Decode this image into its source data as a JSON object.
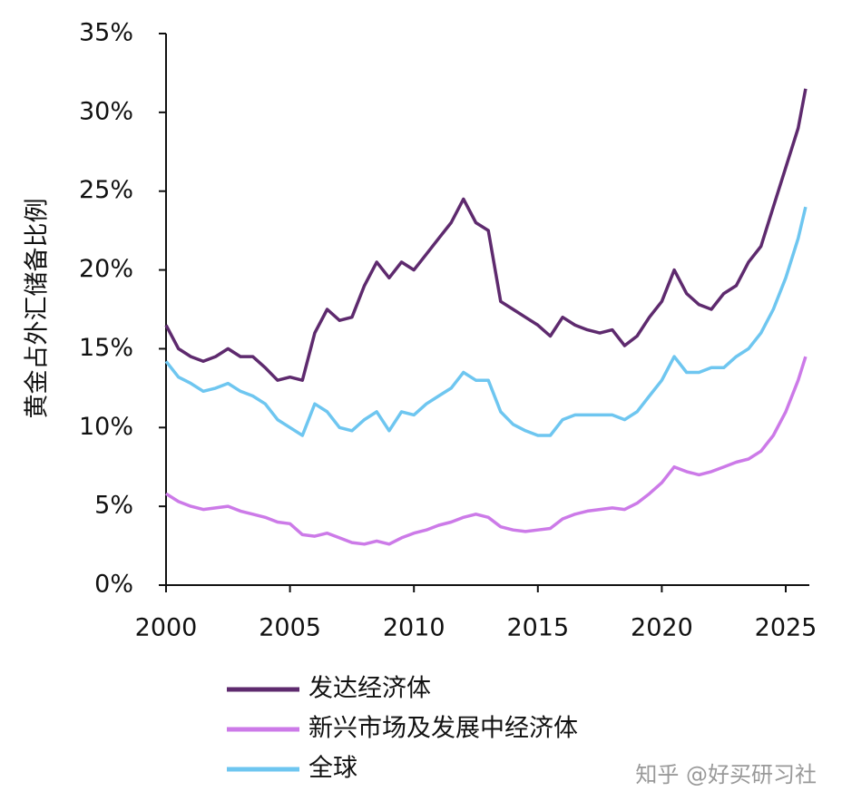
{
  "chart_data": {
    "type": "line",
    "ylabel": "黄金占外汇储备比例",
    "x": [
      2000,
      2000.5,
      2001,
      2001.5,
      2002,
      2002.5,
      2003,
      2003.5,
      2004,
      2004.5,
      2005,
      2005.5,
      2006,
      2006.5,
      2007,
      2007.5,
      2008,
      2008.5,
      2009,
      2009.5,
      2010,
      2010.5,
      2011,
      2011.5,
      2012,
      2012.5,
      2013,
      2013.5,
      2014,
      2014.5,
      2015,
      2015.5,
      2016,
      2016.5,
      2017,
      2017.5,
      2018,
      2018.5,
      2019,
      2019.5,
      2020,
      2020.5,
      2021,
      2021.5,
      2022,
      2022.5,
      2023,
      2023.5,
      2024,
      2024.5,
      2025,
      2025.5,
      2025.8
    ],
    "series": [
      {
        "name": "发达经济体",
        "color": "#5e2a6e",
        "values": [
          16.5,
          15.0,
          14.5,
          14.2,
          14.5,
          15.0,
          14.5,
          14.5,
          13.8,
          13.0,
          13.2,
          13.0,
          16.0,
          17.5,
          16.8,
          17.0,
          19.0,
          20.5,
          19.5,
          20.5,
          20.0,
          21.0,
          22.0,
          23.0,
          24.5,
          23.0,
          22.5,
          18.0,
          17.5,
          17.0,
          16.5,
          15.8,
          17.0,
          16.5,
          16.2,
          16.0,
          16.2,
          15.2,
          15.8,
          17.0,
          18.0,
          20.0,
          18.5,
          17.8,
          17.5,
          18.5,
          19.0,
          20.5,
          21.5,
          24.0,
          26.5,
          29.0,
          31.5
        ]
      },
      {
        "name": "新兴市场及发展中经济体",
        "color": "#cc7ae8",
        "values": [
          5.8,
          5.3,
          5.0,
          4.8,
          4.9,
          5.0,
          4.7,
          4.5,
          4.3,
          4.0,
          3.9,
          3.2,
          3.1,
          3.3,
          3.0,
          2.7,
          2.6,
          2.8,
          2.6,
          3.0,
          3.3,
          3.5,
          3.8,
          4.0,
          4.3,
          4.5,
          4.3,
          3.7,
          3.5,
          3.4,
          3.5,
          3.6,
          4.2,
          4.5,
          4.7,
          4.8,
          4.9,
          4.8,
          5.2,
          5.8,
          6.5,
          7.5,
          7.2,
          7.0,
          7.2,
          7.5,
          7.8,
          8.0,
          8.5,
          9.5,
          11.0,
          13.0,
          14.5
        ]
      },
      {
        "name": "全球",
        "color": "#6ec6f0",
        "values": [
          14.2,
          13.2,
          12.8,
          12.3,
          12.5,
          12.8,
          12.3,
          12.0,
          11.5,
          10.5,
          10.0,
          9.5,
          11.5,
          11.0,
          10.0,
          9.8,
          10.5,
          11.0,
          9.8,
          11.0,
          10.8,
          11.5,
          12.0,
          12.5,
          13.5,
          13.0,
          13.0,
          11.0,
          10.2,
          9.8,
          9.5,
          9.5,
          10.5,
          10.8,
          10.8,
          10.8,
          10.8,
          10.5,
          11.0,
          12.0,
          13.0,
          14.5,
          13.5,
          13.5,
          13.8,
          13.8,
          14.5,
          15.0,
          16.0,
          17.5,
          19.5,
          22.0,
          24.0
        ]
      }
    ],
    "xlim": [
      2000,
      2025
    ],
    "xticks": [
      2000,
      2005,
      2010,
      2015,
      2020,
      2025
    ],
    "ylim": [
      0,
      35
    ],
    "yticks": [
      {
        "value": 0,
        "label": "0%"
      },
      {
        "value": 5,
        "label": "5%"
      },
      {
        "value": 10,
        "label": "10%"
      },
      {
        "value": 15,
        "label": "15%"
      },
      {
        "value": 20,
        "label": "20%"
      },
      {
        "value": 25,
        "label": "25%"
      },
      {
        "value": 30,
        "label": "30%"
      },
      {
        "value": 35,
        "label": "35%"
      }
    ],
    "watermark": "知乎 @好买研习社"
  }
}
